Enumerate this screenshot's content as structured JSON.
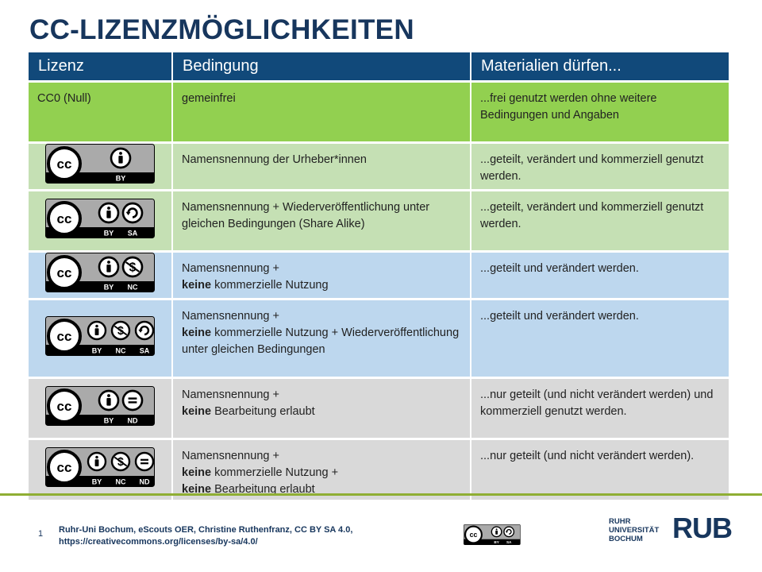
{
  "title": "CC-LIZENZMÖGLICHKEITEN",
  "table": {
    "headers": [
      "Lizenz",
      "Bedingung",
      "Materialien dürfen..."
    ],
    "rows": [
      {
        "style": "g0",
        "license_text": "CC0 (Null)",
        "badge": null,
        "condition": [
          {
            "text": "gemeinfrei"
          }
        ],
        "allowed": "...frei genutzt werden ohne weitere Bedingungen und Angaben"
      },
      {
        "style": "g1",
        "badge": [
          "BY"
        ],
        "condition": [
          {
            "text": "Namensnennung der Urheber*innen"
          }
        ],
        "allowed": "...geteilt, verändert und kommerziell genutzt werden."
      },
      {
        "style": "g1",
        "badge": [
          "BY",
          "SA"
        ],
        "condition": [
          {
            "text": "Namensnennung + Wiederveröffentlichung unter gleichen Bedingungen (Share Alike)"
          }
        ],
        "allowed": "...geteilt, verändert und kommerziell genutzt werden."
      },
      {
        "style": "b",
        "badge": [
          "BY",
          "NC"
        ],
        "condition": [
          {
            "text": "Namensnennung +"
          },
          {
            "br": true
          },
          {
            "text": "keine",
            "bold": true
          },
          {
            "text": " kommerzielle Nutzung"
          }
        ],
        "allowed": "...geteilt und verändert werden."
      },
      {
        "style": "b",
        "badge": [
          "BY",
          "NC",
          "SA"
        ],
        "condition": [
          {
            "text": "Namensnennung +"
          },
          {
            "br": true
          },
          {
            "text": "keine",
            "bold": true
          },
          {
            "text": " kommerzielle Nutzung + Wiederveröffentlichung unter gleichen Bedingungen"
          }
        ],
        "allowed": "...geteilt und verändert werden."
      },
      {
        "style": "gr",
        "badge": [
          "BY",
          "ND"
        ],
        "condition": [
          {
            "text": "Namensnennung +"
          },
          {
            "br": true
          },
          {
            "text": "keine",
            "bold": true
          },
          {
            "text": " Bearbeitung erlaubt"
          }
        ],
        "allowed": "...nur geteilt (und nicht verändert werden) und kommerziell genutzt werden."
      },
      {
        "style": "gr",
        "badge": [
          "BY",
          "NC",
          "ND"
        ],
        "condition": [
          {
            "text": "Namensnennung +"
          },
          {
            "br": true
          },
          {
            "text": "keine",
            "bold": true
          },
          {
            "text": " kommerzielle Nutzung +"
          },
          {
            "br": true
          },
          {
            "text": "keine",
            "bold": true
          },
          {
            "text": " Bearbeitung erlaubt"
          }
        ],
        "allowed": "...nur geteilt (und nicht verändert werden)."
      }
    ]
  },
  "footer": {
    "page_number": "1",
    "credit_line1": "Ruhr-Uni Bochum, eScouts OER, Christine Ruthenfranz, CC BY SA 4.0,",
    "credit_line2": "https://creativecommons.org/licenses/by-sa/4.0/",
    "badge": [
      "BY",
      "SA"
    ],
    "university": [
      "RUHR",
      "UNIVERSITÄT",
      "BOCHUM"
    ],
    "logo": "RUB"
  },
  "colors": {
    "title": "#17365d",
    "header": "#11497a",
    "cc0": "#92d050",
    "attribution": "#c5e0b4",
    "noncommercial": "#bdd7ee",
    "noderivs": "#d9d9d9",
    "footer_line": "#8fae33"
  }
}
